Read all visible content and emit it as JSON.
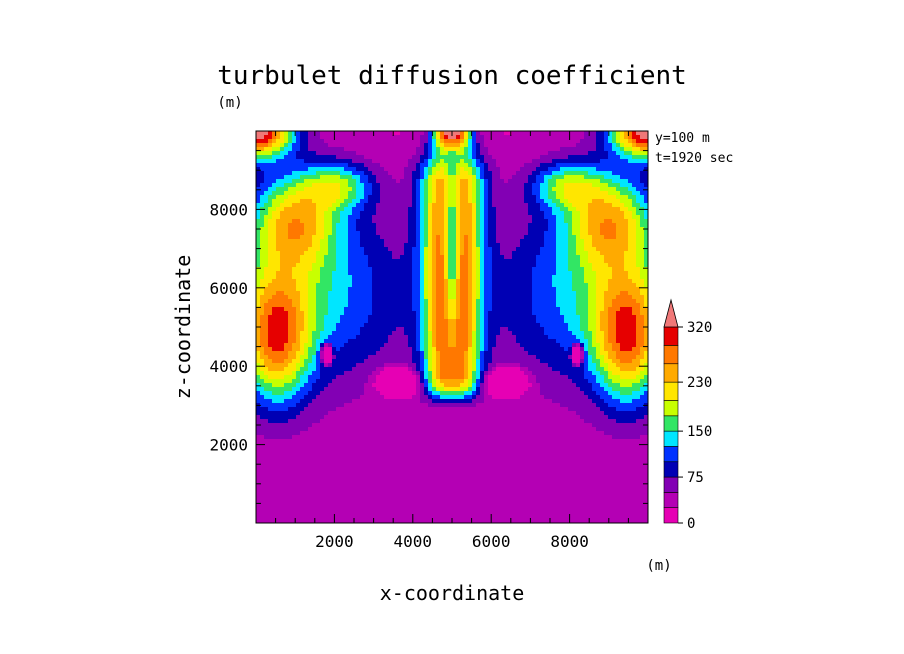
{
  "chart_data": {
    "type": "heatmap",
    "title": "turbulet diffusion coefficient",
    "xlabel": "x-coordinate",
    "ylabel": "z-coordinate",
    "x_unit": "(m)",
    "y_unit": "(m)",
    "annotations": [
      "y=100 m",
      "t=1920 sec"
    ],
    "xlim": [
      0,
      10000
    ],
    "ylim": [
      0,
      10000
    ],
    "x_ticks": [
      2000,
      4000,
      6000,
      8000
    ],
    "y_ticks": [
      2000,
      4000,
      6000,
      8000
    ],
    "colorbar": {
      "levels": [
        0,
        25,
        50,
        75,
        100,
        125,
        150,
        175,
        200,
        230,
        260,
        290,
        320
      ],
      "tick_labels": [
        "0",
        "75",
        "150",
        "230",
        "320"
      ],
      "tick_values": [
        0,
        75,
        150,
        230,
        320
      ],
      "extend": "max",
      "colors": [
        "#e600b4",
        "#b400b4",
        "#8200b4",
        "#0000b4",
        "#0032ff",
        "#00e6ff",
        "#32e664",
        "#c8ff00",
        "#ffe600",
        "#ffaa00",
        "#ff7800",
        "#e60000",
        "#f07878"
      ]
    }
  }
}
